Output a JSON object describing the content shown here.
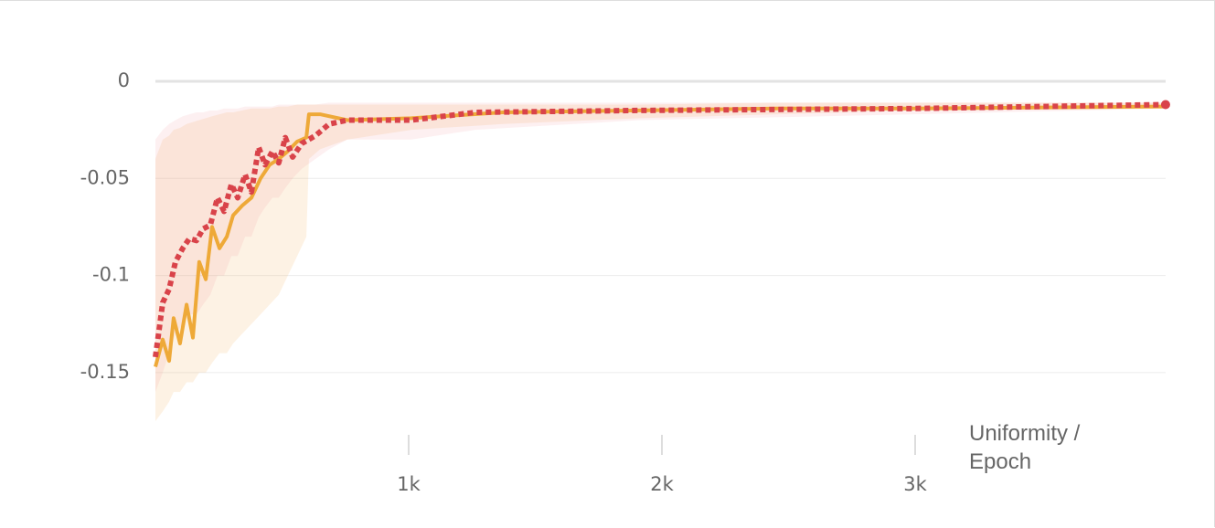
{
  "chart_data": {
    "type": "line",
    "x_label": "Uniformity / Epoch",
    "xlim": [
      0,
      4000
    ],
    "xticks": [
      {
        "value": 1000,
        "label": "1k"
      },
      {
        "value": 2000,
        "label": "2k"
      },
      {
        "value": 3000,
        "label": "3k"
      }
    ],
    "ylim": [
      -0.175,
      0
    ],
    "yticks": [
      0,
      -0.05,
      -0.1,
      -0.15
    ],
    "grid": true,
    "series": [
      {
        "color": "#eea938",
        "style": "solid",
        "x": [
          0,
          29,
          54,
          72,
          97,
          123,
          148,
          173,
          199,
          224,
          253,
          282,
          307,
          343,
          379,
          415,
          451,
          487,
          523,
          560,
          596,
          606,
          650,
          758,
          1011,
          1372,
          1913,
          2455,
          2996,
          3989
        ],
        "values": [
          -0.147,
          -0.133,
          -0.144,
          -0.122,
          -0.135,
          -0.115,
          -0.132,
          -0.093,
          -0.102,
          -0.075,
          -0.086,
          -0.08,
          -0.069,
          -0.064,
          -0.06,
          -0.05,
          -0.043,
          -0.04,
          -0.036,
          -0.031,
          -0.029,
          -0.017,
          -0.017,
          -0.02,
          -0.019,
          -0.016,
          -0.015,
          -0.014,
          -0.014,
          -0.013
        ],
        "lower": [
          -0.175,
          -0.17,
          -0.165,
          -0.16,
          -0.16,
          -0.155,
          -0.155,
          -0.15,
          -0.15,
          -0.145,
          -0.14,
          -0.14,
          -0.135,
          -0.13,
          -0.125,
          -0.12,
          -0.115,
          -0.11,
          -0.1,
          -0.09,
          -0.08,
          -0.04,
          -0.035,
          -0.03,
          -0.025,
          -0.022,
          -0.019,
          -0.017,
          -0.015,
          -0.014
        ],
        "upper": [
          -0.04,
          -0.03,
          -0.028,
          -0.025,
          -0.024,
          -0.022,
          -0.021,
          -0.02,
          -0.019,
          -0.018,
          -0.017,
          -0.016,
          -0.016,
          -0.015,
          -0.014,
          -0.014,
          -0.014,
          -0.013,
          -0.013,
          -0.012,
          -0.012,
          -0.012,
          -0.012,
          -0.012,
          -0.012,
          -0.012,
          -0.012,
          -0.011,
          -0.011,
          -0.011
        ]
      },
      {
        "color": "#d9434a",
        "style": "dotted",
        "x": [
          0,
          29,
          54,
          79,
          108,
          134,
          162,
          188,
          217,
          245,
          271,
          300,
          325,
          354,
          379,
          408,
          433,
          462,
          487,
          513,
          542,
          578,
          632,
          686,
          758,
          1011,
          1264,
          1913,
          2996,
          3989
        ],
        "values": [
          -0.142,
          -0.114,
          -0.107,
          -0.093,
          -0.086,
          -0.081,
          -0.082,
          -0.076,
          -0.074,
          -0.06,
          -0.067,
          -0.053,
          -0.06,
          -0.048,
          -0.057,
          -0.034,
          -0.043,
          -0.036,
          -0.042,
          -0.029,
          -0.039,
          -0.032,
          -0.028,
          -0.022,
          -0.02,
          -0.02,
          -0.016,
          -0.015,
          -0.014,
          -0.012
        ],
        "lower": [
          -0.16,
          -0.15,
          -0.14,
          -0.13,
          -0.125,
          -0.12,
          -0.12,
          -0.115,
          -0.11,
          -0.1,
          -0.1,
          -0.09,
          -0.09,
          -0.08,
          -0.08,
          -0.07,
          -0.065,
          -0.06,
          -0.06,
          -0.055,
          -0.05,
          -0.045,
          -0.04,
          -0.035,
          -0.03,
          -0.03,
          -0.025,
          -0.02,
          -0.017,
          -0.014
        ],
        "upper": [
          -0.03,
          -0.025,
          -0.022,
          -0.02,
          -0.018,
          -0.017,
          -0.016,
          -0.016,
          -0.015,
          -0.015,
          -0.014,
          -0.014,
          -0.014,
          -0.013,
          -0.013,
          -0.013,
          -0.013,
          -0.013,
          -0.012,
          -0.012,
          -0.012,
          -0.012,
          -0.012,
          -0.011,
          -0.011,
          -0.011,
          -0.011,
          -0.011,
          -0.011,
          -0.011
        ]
      }
    ]
  }
}
